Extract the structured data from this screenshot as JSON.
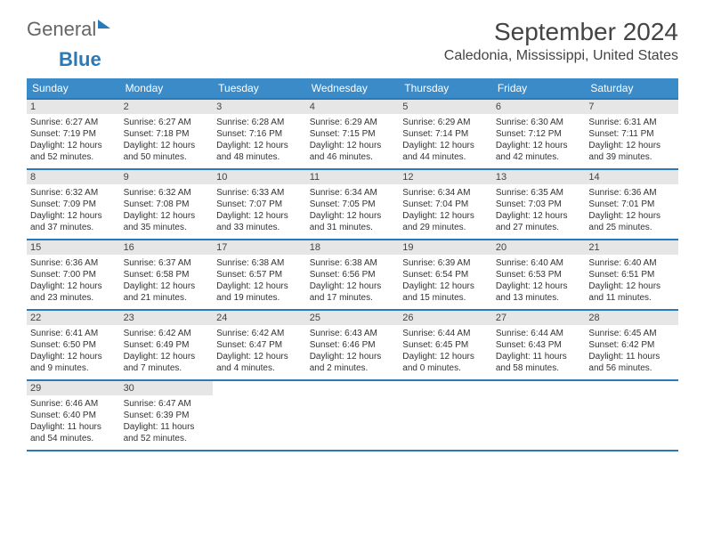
{
  "logo": {
    "general": "General",
    "blue": "Blue"
  },
  "title": "September 2024",
  "location": "Caledonia, Mississippi, United States",
  "colors": {
    "header_bg": "#3b8bc9",
    "border": "#2a7ab9",
    "daynum_bg": "#e6e6e6",
    "text": "#333333"
  },
  "dow": [
    "Sunday",
    "Monday",
    "Tuesday",
    "Wednesday",
    "Thursday",
    "Friday",
    "Saturday"
  ],
  "weeks": [
    [
      {
        "n": "1",
        "sr": "Sunrise: 6:27 AM",
        "ss": "Sunset: 7:19 PM",
        "d1": "Daylight: 12 hours",
        "d2": "and 52 minutes."
      },
      {
        "n": "2",
        "sr": "Sunrise: 6:27 AM",
        "ss": "Sunset: 7:18 PM",
        "d1": "Daylight: 12 hours",
        "d2": "and 50 minutes."
      },
      {
        "n": "3",
        "sr": "Sunrise: 6:28 AM",
        "ss": "Sunset: 7:16 PM",
        "d1": "Daylight: 12 hours",
        "d2": "and 48 minutes."
      },
      {
        "n": "4",
        "sr": "Sunrise: 6:29 AM",
        "ss": "Sunset: 7:15 PM",
        "d1": "Daylight: 12 hours",
        "d2": "and 46 minutes."
      },
      {
        "n": "5",
        "sr": "Sunrise: 6:29 AM",
        "ss": "Sunset: 7:14 PM",
        "d1": "Daylight: 12 hours",
        "d2": "and 44 minutes."
      },
      {
        "n": "6",
        "sr": "Sunrise: 6:30 AM",
        "ss": "Sunset: 7:12 PM",
        "d1": "Daylight: 12 hours",
        "d2": "and 42 minutes."
      },
      {
        "n": "7",
        "sr": "Sunrise: 6:31 AM",
        "ss": "Sunset: 7:11 PM",
        "d1": "Daylight: 12 hours",
        "d2": "and 39 minutes."
      }
    ],
    [
      {
        "n": "8",
        "sr": "Sunrise: 6:32 AM",
        "ss": "Sunset: 7:09 PM",
        "d1": "Daylight: 12 hours",
        "d2": "and 37 minutes."
      },
      {
        "n": "9",
        "sr": "Sunrise: 6:32 AM",
        "ss": "Sunset: 7:08 PM",
        "d1": "Daylight: 12 hours",
        "d2": "and 35 minutes."
      },
      {
        "n": "10",
        "sr": "Sunrise: 6:33 AM",
        "ss": "Sunset: 7:07 PM",
        "d1": "Daylight: 12 hours",
        "d2": "and 33 minutes."
      },
      {
        "n": "11",
        "sr": "Sunrise: 6:34 AM",
        "ss": "Sunset: 7:05 PM",
        "d1": "Daylight: 12 hours",
        "d2": "and 31 minutes."
      },
      {
        "n": "12",
        "sr": "Sunrise: 6:34 AM",
        "ss": "Sunset: 7:04 PM",
        "d1": "Daylight: 12 hours",
        "d2": "and 29 minutes."
      },
      {
        "n": "13",
        "sr": "Sunrise: 6:35 AM",
        "ss": "Sunset: 7:03 PM",
        "d1": "Daylight: 12 hours",
        "d2": "and 27 minutes."
      },
      {
        "n": "14",
        "sr": "Sunrise: 6:36 AM",
        "ss": "Sunset: 7:01 PM",
        "d1": "Daylight: 12 hours",
        "d2": "and 25 minutes."
      }
    ],
    [
      {
        "n": "15",
        "sr": "Sunrise: 6:36 AM",
        "ss": "Sunset: 7:00 PM",
        "d1": "Daylight: 12 hours",
        "d2": "and 23 minutes."
      },
      {
        "n": "16",
        "sr": "Sunrise: 6:37 AM",
        "ss": "Sunset: 6:58 PM",
        "d1": "Daylight: 12 hours",
        "d2": "and 21 minutes."
      },
      {
        "n": "17",
        "sr": "Sunrise: 6:38 AM",
        "ss": "Sunset: 6:57 PM",
        "d1": "Daylight: 12 hours",
        "d2": "and 19 minutes."
      },
      {
        "n": "18",
        "sr": "Sunrise: 6:38 AM",
        "ss": "Sunset: 6:56 PM",
        "d1": "Daylight: 12 hours",
        "d2": "and 17 minutes."
      },
      {
        "n": "19",
        "sr": "Sunrise: 6:39 AM",
        "ss": "Sunset: 6:54 PM",
        "d1": "Daylight: 12 hours",
        "d2": "and 15 minutes."
      },
      {
        "n": "20",
        "sr": "Sunrise: 6:40 AM",
        "ss": "Sunset: 6:53 PM",
        "d1": "Daylight: 12 hours",
        "d2": "and 13 minutes."
      },
      {
        "n": "21",
        "sr": "Sunrise: 6:40 AM",
        "ss": "Sunset: 6:51 PM",
        "d1": "Daylight: 12 hours",
        "d2": "and 11 minutes."
      }
    ],
    [
      {
        "n": "22",
        "sr": "Sunrise: 6:41 AM",
        "ss": "Sunset: 6:50 PM",
        "d1": "Daylight: 12 hours",
        "d2": "and 9 minutes."
      },
      {
        "n": "23",
        "sr": "Sunrise: 6:42 AM",
        "ss": "Sunset: 6:49 PM",
        "d1": "Daylight: 12 hours",
        "d2": "and 7 minutes."
      },
      {
        "n": "24",
        "sr": "Sunrise: 6:42 AM",
        "ss": "Sunset: 6:47 PM",
        "d1": "Daylight: 12 hours",
        "d2": "and 4 minutes."
      },
      {
        "n": "25",
        "sr": "Sunrise: 6:43 AM",
        "ss": "Sunset: 6:46 PM",
        "d1": "Daylight: 12 hours",
        "d2": "and 2 minutes."
      },
      {
        "n": "26",
        "sr": "Sunrise: 6:44 AM",
        "ss": "Sunset: 6:45 PM",
        "d1": "Daylight: 12 hours",
        "d2": "and 0 minutes."
      },
      {
        "n": "27",
        "sr": "Sunrise: 6:44 AM",
        "ss": "Sunset: 6:43 PM",
        "d1": "Daylight: 11 hours",
        "d2": "and 58 minutes."
      },
      {
        "n": "28",
        "sr": "Sunrise: 6:45 AM",
        "ss": "Sunset: 6:42 PM",
        "d1": "Daylight: 11 hours",
        "d2": "and 56 minutes."
      }
    ],
    [
      {
        "n": "29",
        "sr": "Sunrise: 6:46 AM",
        "ss": "Sunset: 6:40 PM",
        "d1": "Daylight: 11 hours",
        "d2": "and 54 minutes."
      },
      {
        "n": "30",
        "sr": "Sunrise: 6:47 AM",
        "ss": "Sunset: 6:39 PM",
        "d1": "Daylight: 11 hours",
        "d2": "and 52 minutes."
      },
      null,
      null,
      null,
      null,
      null
    ]
  ]
}
